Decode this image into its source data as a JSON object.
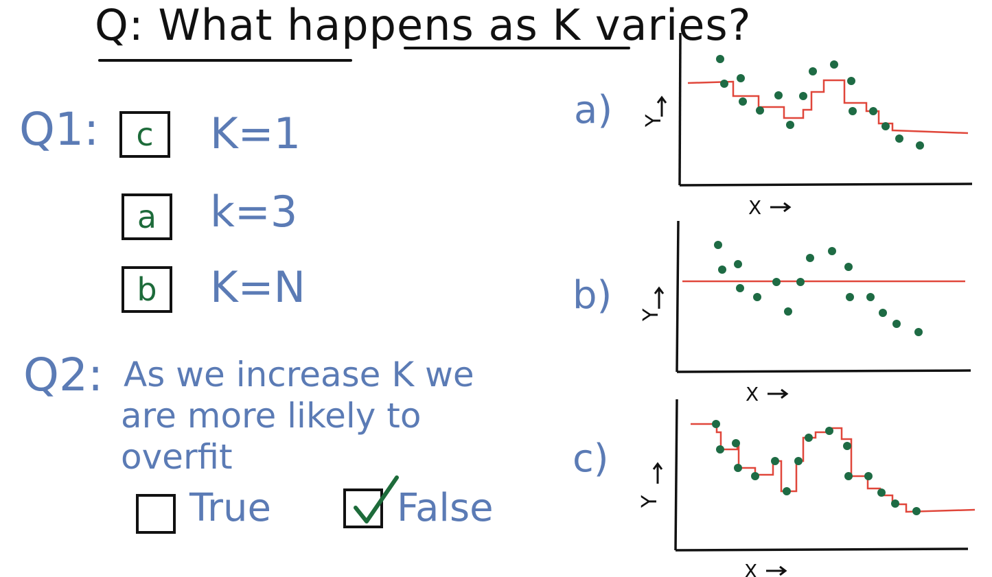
{
  "title": "Q: What happens as K varies?",
  "q1": {
    "label": "Q1:",
    "items": [
      {
        "answer": "c",
        "k": "K=1"
      },
      {
        "answer": "a",
        "k": "k=3"
      },
      {
        "answer": "b",
        "k": "K=N"
      }
    ]
  },
  "q2": {
    "label": "Q2:",
    "line1": "As we increase K we",
    "line2": "are more likely to",
    "line3": "overfit",
    "option_true": "True",
    "option_false": "False",
    "selected": "False"
  },
  "plots": [
    {
      "label": "a)",
      "y_axis": "Y",
      "x_axis": "X"
    },
    {
      "label": "b)",
      "y_axis": "Y",
      "x_axis": "X"
    },
    {
      "label": "c)",
      "y_axis": "Y",
      "x_axis": "X"
    }
  ],
  "colors": {
    "ink": "#111111",
    "handwriting_blue": "#5b7bb5",
    "answer_green": "#1d6b3a",
    "fit_line_red": "#e0463a",
    "point_green": "#1e6b44"
  }
}
